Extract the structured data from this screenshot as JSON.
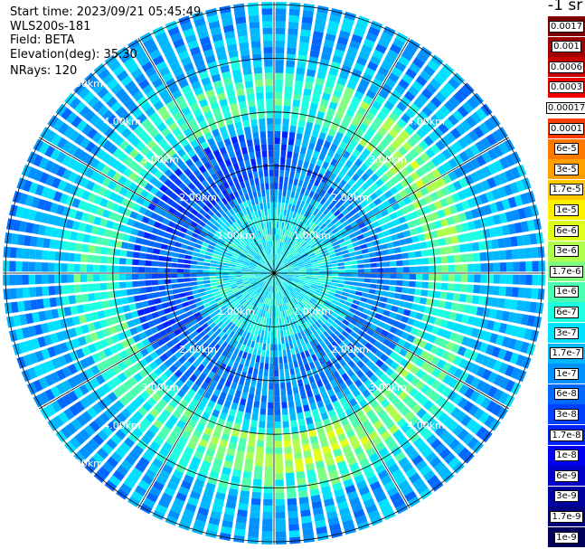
{
  "info": {
    "start_time": "Start time: 2023/09/21 05:45:49",
    "instrument": "WLS200s-181",
    "field": "Field: BETA",
    "elevation": "Elevation(deg): 35.30",
    "nrays": "NRays: 120"
  },
  "unit_label": "-1 sr",
  "colorbar": {
    "labels": [
      "0.0017",
      "0.001",
      "0.0006",
      "0.0003",
      "0.00017",
      "0.0001",
      "6e-5",
      "3e-5",
      "1.7e-5",
      "1e-5",
      "6e-6",
      "3e-6",
      "1.7e-6",
      "1e-6",
      "6e-7",
      "3e-7",
      "1.7e-7",
      "1e-7",
      "6e-8",
      "3e-8",
      "1.7e-8",
      "1e-8",
      "6e-9",
      "3e-9",
      "1.7e-9",
      "1e-9"
    ],
    "colors": [
      "#7f0000",
      "#a00000",
      "#c80000",
      "#f00000",
      "#ffffff",
      "#ff3c00",
      "#ff7800",
      "#ffa000",
      "#ffc800",
      "#fff000",
      "#e0ff1c",
      "#b0ff4c",
      "#80ff80",
      "#4cffb0",
      "#1cffe0",
      "#00e0ff",
      "#00b8ff",
      "#0090ff",
      "#0068ff",
      "#0040ff",
      "#0020ff",
      "#0000f0",
      "#0000c8",
      "#0000a0",
      "#000080",
      "#00005a"
    ]
  },
  "chart_data": {
    "type": "heatmap",
    "projection": "polar PPI",
    "nrays": 120,
    "range_max_km": 5.0,
    "range_rings_km": [
      1.0,
      2.0,
      3.0,
      4.0,
      5.0
    ],
    "ring_labels": [
      "1.00km",
      "2.00km",
      "3.00km",
      "4.00km",
      "5.00km"
    ],
    "colorscale": "log10 backscatter",
    "features": [
      {
        "range_km": [
          0.0,
          1.2
        ],
        "value": 1.7e-07
      },
      {
        "range_km": [
          1.2,
          2.6
        ],
        "value": 1e-07
      },
      {
        "range_km": [
          2.6,
          3.7
        ],
        "value": 6e-07
      },
      {
        "range_km": [
          3.7,
          5.0
        ],
        "value": 1e-07
      }
    ]
  }
}
